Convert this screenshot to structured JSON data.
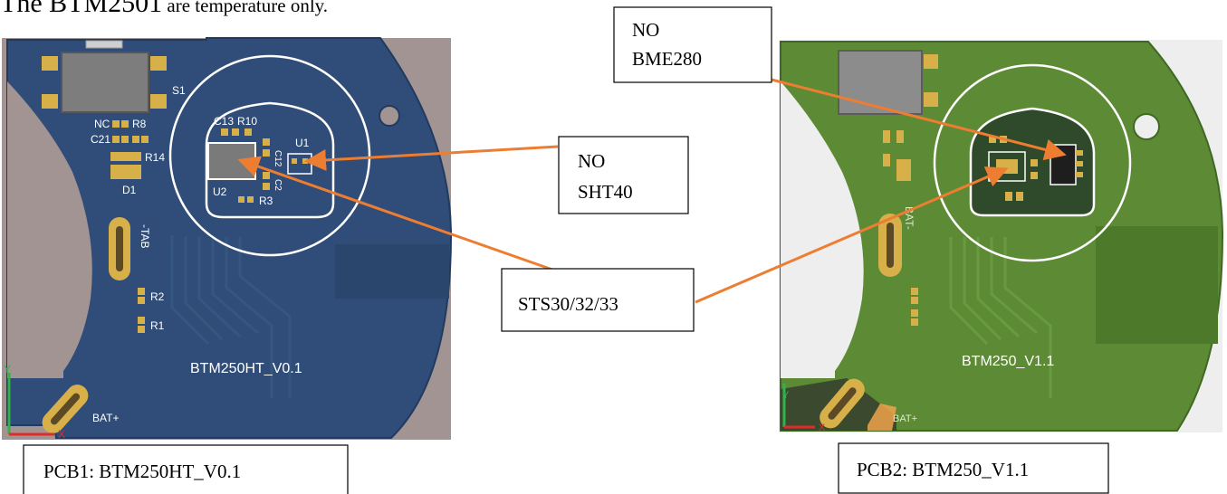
{
  "heading": {
    "lead": "The BTM2501",
    "rest": " are temperature only."
  },
  "callouts": {
    "no_bme280": [
      "NO",
      "BME280"
    ],
    "no_sht40": [
      "NO",
      "SHT40"
    ],
    "sts": "STS30/32/33"
  },
  "captions": {
    "pcb1": "PCB1: BTM250HT_V0.1",
    "pcb2": "PCB2: BTM250_V1.1"
  },
  "pcb1": {
    "board_label": "BTM250HT_V0.1",
    "silkscreen": {
      "s1": "S1",
      "nc": "NC",
      "r8": "R8",
      "c21": "C21",
      "r14": "R14",
      "d1": "D1",
      "c13": "C13",
      "r10": "R10",
      "u1": "U1",
      "u2": "U2",
      "r3": "R3",
      "c12": "C12",
      "c2": "C2",
      "tab": "-TAB",
      "r2": "R2",
      "r1": "R1",
      "bat_plus": "BAT+"
    },
    "axis": {
      "y": "Y",
      "x": "X"
    }
  },
  "pcb2": {
    "board_label": "BTM250_V1.1",
    "silkscreen": {
      "bat_minus": "BAT-",
      "bat_plus": "BAT+"
    },
    "axis": {
      "y": "Y",
      "x": "X"
    }
  },
  "colors": {
    "pcb1_board": "#2f4d78",
    "pcb1_background": "#a29492",
    "pcb2_board": "#5d8b35",
    "pcb2_background": "#eeeeee",
    "arrow": "#ed7d31",
    "pad": "#d8b04a"
  }
}
